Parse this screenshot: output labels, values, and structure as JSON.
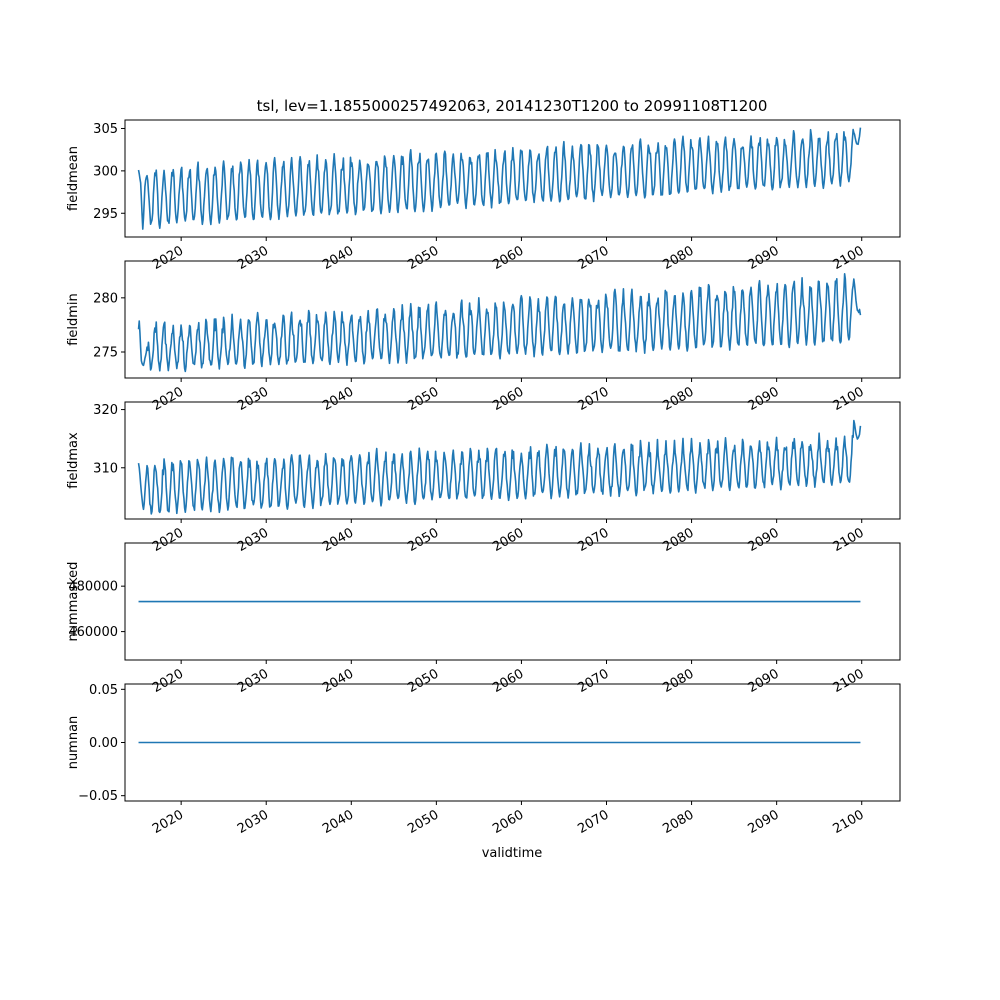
{
  "figure": {
    "title": "tsl, lev=1.1855000257492063, 20141230T1200 to 20991108T1200",
    "xlabel": "validtime",
    "line_color": "#1f77b4"
  },
  "chart_data": [
    {
      "type": "line",
      "name": "fieldmean",
      "ylabel": "fieldmean",
      "xlim": [
        2013.4,
        2104.5
      ],
      "ylim": [
        292.2,
        306.0
      ],
      "yticks": [
        295,
        300,
        305
      ],
      "ytick_labels": [
        "295",
        "300",
        "305"
      ],
      "xticks": [
        2020,
        2030,
        2040,
        2050,
        2060,
        2070,
        2080,
        2090,
        2100
      ],
      "xtick_labels": [
        "2020",
        "2030",
        "2040",
        "2050",
        "2060",
        "2070",
        "2080",
        "2090",
        "2100"
      ],
      "show_xtick_labels": true,
      "x_start": 2014.99,
      "x_end": 2099.85,
      "x": [
        2015.0,
        2015.25,
        2015.5,
        2015.75,
        2016.0,
        2016.25,
        2016.5,
        2016.75,
        2017.0,
        2020.0,
        2025.0,
        2030.0,
        2035.0,
        2040.0,
        2045.0,
        2050.0,
        2055.0,
        2060.0,
        2065.0,
        2070.0,
        2075.0,
        2080.0,
        2085.0,
        2090.0,
        2095.0,
        2099.0,
        2099.85
      ],
      "y": [
        300.1,
        299.5,
        292.8,
        299.0,
        299.3,
        298.0,
        293.2,
        299.6,
        300.2,
        300.4,
        300.5,
        300.2,
        300.5,
        301.5,
        301.3,
        301.6,
        301.3,
        302.3,
        302.4,
        302.3,
        303.2,
        303.6,
        303.0,
        304.3,
        304.0,
        305.0,
        305.1
      ],
      "cycle": {
        "period_years": 1.0,
        "peak_start": 299.9,
        "peak_end": 304.4,
        "trough_start": 293.5,
        "trough_end": 298.6,
        "noise": 0.9
      }
    },
    {
      "type": "line",
      "name": "fieldmin",
      "ylabel": "fieldmin",
      "xlim": [
        2013.4,
        2104.5
      ],
      "ylim": [
        272.6,
        283.4
      ],
      "yticks": [
        275,
        280
      ],
      "ytick_labels": [
        "275",
        "280"
      ],
      "xticks": [
        2020,
        2030,
        2040,
        2050,
        2060,
        2070,
        2080,
        2090,
        2100
      ],
      "xtick_labels": [
        "2020",
        "2030",
        "2040",
        "2050",
        "2060",
        "2070",
        "2080",
        "2090",
        "2100"
      ],
      "show_xtick_labels": true,
      "x_start": 2014.99,
      "x_end": 2099.85,
      "x": [
        2015.0,
        2015.1,
        2015.3,
        2015.6,
        2016.0,
        2016.4,
        2016.8,
        2017.3,
        2020.0,
        2025.0,
        2030.0,
        2035.0,
        2040.0,
        2045.0,
        2050.0,
        2055.0,
        2060.0,
        2065.0,
        2070.0,
        2075.0,
        2080.0,
        2085.0,
        2090.0,
        2095.0,
        2097.0,
        2099.0,
        2099.85
      ],
      "y": [
        277.1,
        278.3,
        274.1,
        273.7,
        274.5,
        273.3,
        273.2,
        273.6,
        277.4,
        277.9,
        278.4,
        278.0,
        278.9,
        279.3,
        279.0,
        280.5,
        280.0,
        281.1,
        281.3,
        281.0,
        281.2,
        281.5,
        281.7,
        282.0,
        283.2,
        282.4,
        278.4
      ],
      "cycle": {
        "period_years": 1.0,
        "peak_start": 277.2,
        "peak_end": 281.6,
        "trough_start": 273.4,
        "trough_end": 276.0,
        "noise": 0.8
      }
    },
    {
      "type": "line",
      "name": "fieldmax",
      "ylabel": "fieldmax",
      "xlim": [
        2013.4,
        2104.5
      ],
      "ylim": [
        301.2,
        321.3
      ],
      "yticks": [
        310,
        320
      ],
      "ytick_labels": [
        "310",
        "320"
      ],
      "xticks": [
        2020,
        2030,
        2040,
        2050,
        2060,
        2070,
        2080,
        2090,
        2100
      ],
      "xtick_labels": [
        "2020",
        "2030",
        "2040",
        "2050",
        "2060",
        "2070",
        "2080",
        "2090",
        "2100"
      ],
      "show_xtick_labels": true,
      "x_start": 2014.99,
      "x_end": 2099.85,
      "x": [
        2015.0,
        2015.3,
        2015.6,
        2016.0,
        2017.0,
        2020.0,
        2025.0,
        2030.0,
        2035.0,
        2040.0,
        2045.0,
        2050.0,
        2055.0,
        2060.0,
        2065.0,
        2070.0,
        2075.0,
        2080.0,
        2085.0,
        2090.0,
        2095.0,
        2098.9,
        2099.85
      ],
      "y": [
        310.8,
        307.0,
        302.2,
        310.9,
        302.0,
        311.0,
        312.0,
        311.5,
        311.0,
        314.0,
        312.5,
        313.0,
        313.5,
        314.5,
        313.8,
        314.5,
        314.8,
        315.5,
        315.2,
        315.6,
        316.0,
        320.2,
        317.2
      ],
      "cycle": {
        "period_years": 1.0,
        "peak_start": 310.5,
        "peak_end": 314.8,
        "trough_start": 302.3,
        "trough_end": 307.5,
        "noise": 1.4
      }
    },
    {
      "type": "line",
      "name": "nummasked",
      "ylabel": "nummasked",
      "xlim": [
        2013.4,
        2104.5
      ],
      "ylim": [
        447500,
        499000
      ],
      "yticks": [
        460000,
        480000
      ],
      "ytick_labels": [
        "460000",
        "480000"
      ],
      "xticks": [
        2020,
        2030,
        2040,
        2050,
        2060,
        2070,
        2080,
        2090,
        2100
      ],
      "xtick_labels": [
        "2020",
        "2030",
        "2040",
        "2050",
        "2060",
        "2070",
        "2080",
        "2090",
        "2100"
      ],
      "show_xtick_labels": true,
      "x_start": 2014.99,
      "x_end": 2099.85,
      "x": [
        2014.99,
        2099.85
      ],
      "y": [
        473200,
        473200
      ]
    },
    {
      "type": "line",
      "name": "numnan",
      "ylabel": "numnan",
      "xlim": [
        2013.4,
        2104.5
      ],
      "ylim": [
        -0.055,
        0.055
      ],
      "yticks": [
        -0.05,
        0.0,
        0.05
      ],
      "ytick_labels": [
        "−0.05",
        "0.00",
        "0.05"
      ],
      "xticks": [
        2020,
        2030,
        2040,
        2050,
        2060,
        2070,
        2080,
        2090,
        2100
      ],
      "xtick_labels": [
        "2020",
        "2030",
        "2040",
        "2050",
        "2060",
        "2070",
        "2080",
        "2090",
        "2100"
      ],
      "show_xtick_labels": true,
      "x_start": 2014.99,
      "x_end": 2099.85,
      "x": [
        2014.99,
        2099.85
      ],
      "y": [
        0.0,
        0.0
      ]
    }
  ]
}
